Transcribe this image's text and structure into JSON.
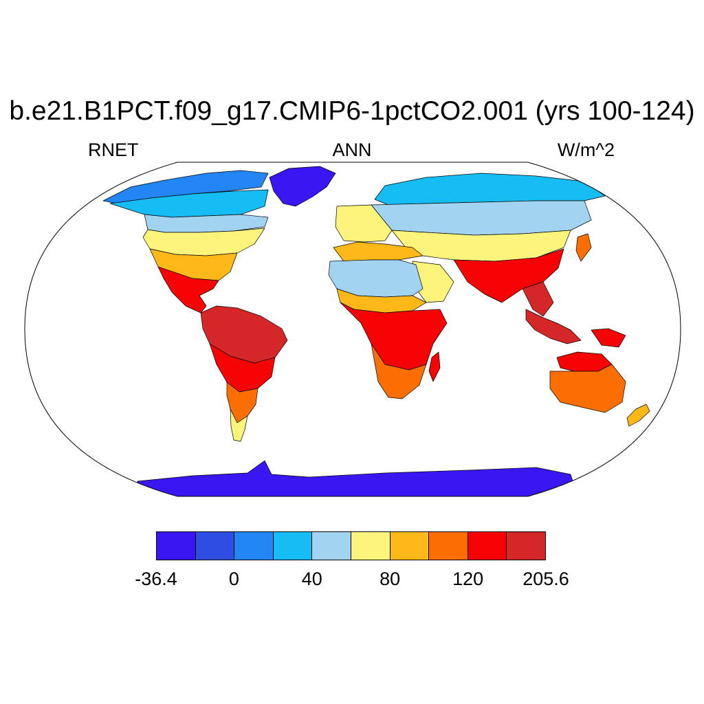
{
  "title": "b.e21.B1PCT.f09_g17.CMIP6-1pctCO2.001 (yrs 100-124)",
  "left_label": "RNET",
  "center_label": "ANN",
  "right_label": "W/m^2",
  "colorbar": {
    "colors": [
      "#3a17f2",
      "#2f4fe2",
      "#2386f5",
      "#16bdf5",
      "#a2d3f0",
      "#fdf47b",
      "#feb918",
      "#fd6f02",
      "#f60404",
      "#d62728"
    ],
    "labels": [
      {
        "text": "-36.4",
        "edge": 0
      },
      {
        "text": "0",
        "edge": 2
      },
      {
        "text": "40",
        "edge": 4
      },
      {
        "text": "80",
        "edge": 6
      },
      {
        "text": "120",
        "edge": 8
      },
      {
        "text": "205.6",
        "edge": 10
      }
    ]
  },
  "regions": [
    {
      "name": "greenland",
      "level": 0
    },
    {
      "name": "antarctica",
      "level": 0
    },
    {
      "name": "north-canada",
      "level": 2
    },
    {
      "name": "canada",
      "level": 3
    },
    {
      "name": "canada-south",
      "level": 4
    },
    {
      "name": "north-america-temperate",
      "level": 5
    },
    {
      "name": "north-america-south",
      "level": 6
    },
    {
      "name": "central-america",
      "level": 8
    },
    {
      "name": "south-america-north",
      "level": 9
    },
    {
      "name": "south-america-middle",
      "level": 8
    },
    {
      "name": "south-america-south",
      "level": 7
    },
    {
      "name": "patagonia",
      "level": 5
    },
    {
      "name": "siberia",
      "level": 3
    },
    {
      "name": "eurasia-central",
      "level": 4
    },
    {
      "name": "central-asia",
      "level": 5
    },
    {
      "name": "europe",
      "level": 5
    },
    {
      "name": "north-africa-mediterranean",
      "level": 6
    },
    {
      "name": "sahara",
      "level": 4
    },
    {
      "name": "sahel",
      "level": 6
    },
    {
      "name": "africa-tropical",
      "level": 8
    },
    {
      "name": "africa-south",
      "level": 7
    },
    {
      "name": "arabia",
      "level": 5
    },
    {
      "name": "india-china-south",
      "level": 8
    },
    {
      "name": "southeast-asia",
      "level": 9
    },
    {
      "name": "indonesia",
      "level": 9
    },
    {
      "name": "new-guinea",
      "level": 8
    },
    {
      "name": "australia",
      "level": 7
    },
    {
      "name": "australia-north",
      "level": 8
    },
    {
      "name": "madagascar",
      "level": 8
    },
    {
      "name": "new-zealand",
      "level": 6
    },
    {
      "name": "japan",
      "level": 7
    }
  ]
}
